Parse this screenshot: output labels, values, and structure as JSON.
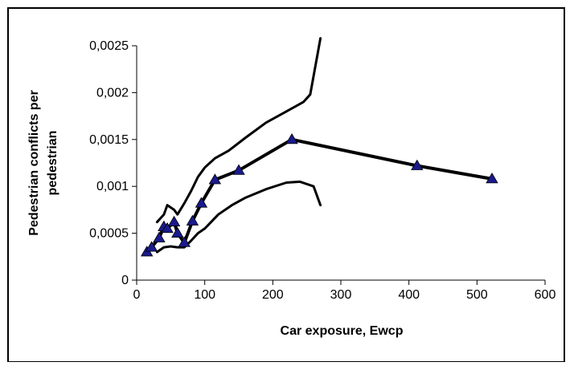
{
  "chart_data": {
    "type": "line",
    "title": "",
    "xlabel": "Car exposure, Ewcp",
    "ylabel_lines": [
      "Pedestrian conflicts per",
      "pedestrian"
    ],
    "xlim": [
      0,
      600
    ],
    "ylim": [
      0,
      0.0025
    ],
    "x_ticks": [
      0,
      100,
      200,
      300,
      400,
      500,
      600
    ],
    "x_tick_labels": [
      "0",
      "100",
      "200",
      "300",
      "400",
      "500",
      "600"
    ],
    "y_ticks": [
      0,
      0.0005,
      0.001,
      0.0015,
      0.002,
      0.0025
    ],
    "y_tick_labels": [
      "0",
      "0,0005",
      "0,001",
      "0,0015",
      "0,002",
      "0,0025"
    ],
    "grid": false,
    "legend": "none",
    "series": [
      {
        "role": "observed",
        "color": "#000000",
        "marker": "triangle",
        "marker_color": "#1a1a8c",
        "x": [
          15,
          22,
          33,
          40,
          45,
          55,
          60,
          70,
          82,
          95,
          115,
          150,
          228,
          412,
          522
        ],
        "y": [
          0.0003,
          0.00035,
          0.00045,
          0.00057,
          0.00055,
          0.00062,
          0.0005,
          0.0004,
          0.00063,
          0.00082,
          0.00107,
          0.00117,
          0.0015,
          0.00122,
          0.00108
        ]
      },
      {
        "role": "upper-bound",
        "color": "#000000",
        "x": [
          30,
          40,
          45,
          55,
          60,
          70,
          80,
          90,
          100,
          115,
          135,
          160,
          190,
          220,
          245,
          255,
          270
        ],
        "y": [
          0.00062,
          0.0007,
          0.0008,
          0.00075,
          0.0007,
          0.00082,
          0.00095,
          0.0011,
          0.0012,
          0.0013,
          0.00138,
          0.00152,
          0.00168,
          0.0018,
          0.0019,
          0.00198,
          0.00258
        ]
      },
      {
        "role": "lower-bound",
        "color": "#000000",
        "x": [
          30,
          40,
          50,
          60,
          70,
          80,
          90,
          100,
          120,
          140,
          160,
          190,
          220,
          240,
          260,
          270
        ],
        "y": [
          0.0003,
          0.00035,
          0.00036,
          0.00035,
          0.00035,
          0.00042,
          0.0005,
          0.00055,
          0.0007,
          0.0008,
          0.00088,
          0.00097,
          0.00104,
          0.00105,
          0.001,
          0.0008
        ]
      }
    ]
  }
}
